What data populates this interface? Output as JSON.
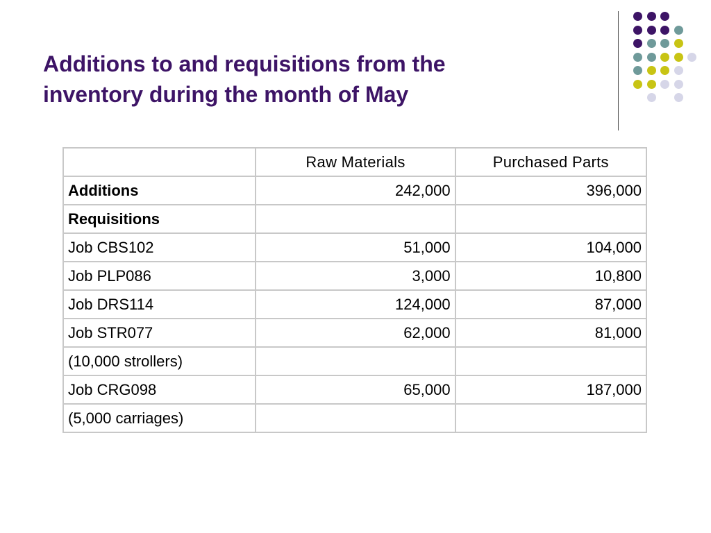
{
  "slide": {
    "title_line1": "Additions to and requisitions from the",
    "title_line2": "inventory during the month of May",
    "title_color": "#3d1466"
  },
  "decoration": {
    "palette": {
      "purple": "#3d1466",
      "teal": "#6f9a9a",
      "yellow": "#c8c414",
      "lavender": "#d6d6e8"
    }
  },
  "table": {
    "headers": [
      "",
      "Raw Materials",
      "Purchased Parts"
    ],
    "rows": [
      {
        "label": "Additions",
        "raw": "242,000",
        "parts": "396,000"
      },
      {
        "label": "Requisitions",
        "raw": "",
        "parts": ""
      },
      {
        "label": "Job CBS102",
        "raw": "51,000",
        "parts": "104,000"
      },
      {
        "label": "Job PLP086",
        "raw": "3,000",
        "parts": "10,800"
      },
      {
        "label": "Job DRS114",
        "raw": "124,000",
        "parts": "87,000"
      },
      {
        "label": "Job STR077",
        "raw": "62,000",
        "parts": "81,000"
      },
      {
        "label": "(10,000 strollers)",
        "raw": "",
        "parts": ""
      },
      {
        "label": "Job CRG098",
        "raw": "65,000",
        "parts": "187,000"
      },
      {
        "label": "(5,000 carriages)",
        "raw": "",
        "parts": ""
      }
    ]
  }
}
